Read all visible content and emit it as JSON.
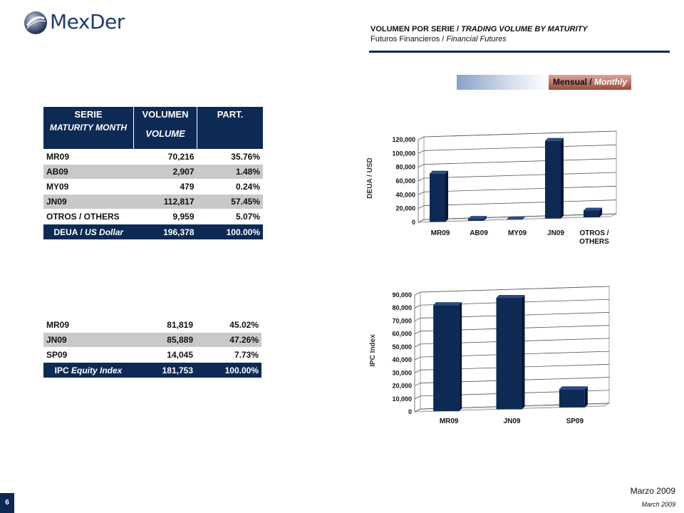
{
  "brand": {
    "logo_text": "MexDer"
  },
  "header": {
    "title_es": "VOLUMEN POR SERIE /",
    "title_en": "TRADING VOLUME BY MATURITY",
    "subtitle_es": "Futuros Financieros /",
    "subtitle_en": "Financial Futures"
  },
  "banner": {
    "label_es": "Mensual /",
    "label_en": "Monthly"
  },
  "table_deua": {
    "header": {
      "col1_line1": "SERIE",
      "col1_line2": "MATURITY MONTH",
      "col2_line1": "VOLUMEN",
      "col2_line2": "VOLUME",
      "col3": "PART."
    },
    "rows": [
      {
        "serie": "MR09",
        "volume": "70,216",
        "part": "35.76%"
      },
      {
        "serie": "AB09",
        "volume": "2,907",
        "part": "1.48%"
      },
      {
        "serie": "MY09",
        "volume": "479",
        "part": "0.24%"
      },
      {
        "serie": "JN09",
        "volume": "112,817",
        "part": "57.45%"
      },
      {
        "serie": "OTROS / OTHERS",
        "volume": "9,959",
        "part": "5.07%"
      }
    ],
    "total": {
      "label_es": "DEUA /",
      "label_en": "US Dollar",
      "volume": "196,378",
      "part": "100.00%"
    }
  },
  "table_ipc": {
    "rows": [
      {
        "serie": "MR09",
        "volume": "81,819",
        "part": "45.02%"
      },
      {
        "serie": "JN09",
        "volume": "85,889",
        "part": "47.26%"
      },
      {
        "serie": "SP09",
        "volume": "14,045",
        "part": "7.73%"
      }
    ],
    "total": {
      "label_es": "IPC",
      "label_en": "Equity Index",
      "volume": "181,753",
      "part": "100.00%"
    }
  },
  "chart_data": [
    {
      "type": "bar",
      "ylabel": "DEUA / USD",
      "categories": [
        "MR09",
        "AB09",
        "MY09",
        "JN09",
        "OTROS / OTHERS"
      ],
      "values": [
        70216,
        2907,
        479,
        112817,
        9959
      ],
      "ylim": [
        0,
        120000
      ],
      "yticks": [
        0,
        20000,
        40000,
        60000,
        80000,
        100000,
        120000
      ],
      "ytick_labels": [
        "0",
        "20,000",
        "40,000",
        "60,000",
        "80,000",
        "100,000",
        "120,000"
      ],
      "grid": true,
      "bar_color": "#0d2a55"
    },
    {
      "type": "bar",
      "ylabel": "IPC Index",
      "categories": [
        "MR09",
        "JN09",
        "SP09"
      ],
      "values": [
        81819,
        85889,
        14045
      ],
      "ylim": [
        0,
        90000
      ],
      "yticks": [
        0,
        10000,
        20000,
        30000,
        40000,
        50000,
        60000,
        70000,
        80000,
        90000
      ],
      "ytick_labels": [
        "0",
        "10,000",
        "20,000",
        "30,000",
        "40,000",
        "50,000",
        "60,000",
        "70,000",
        "80,000",
        "90,000"
      ],
      "grid": true,
      "bar_color": "#0d2a55"
    }
  ],
  "footer": {
    "page": "6",
    "date_es": "Marzo 2009",
    "date_en": "March 2009"
  }
}
